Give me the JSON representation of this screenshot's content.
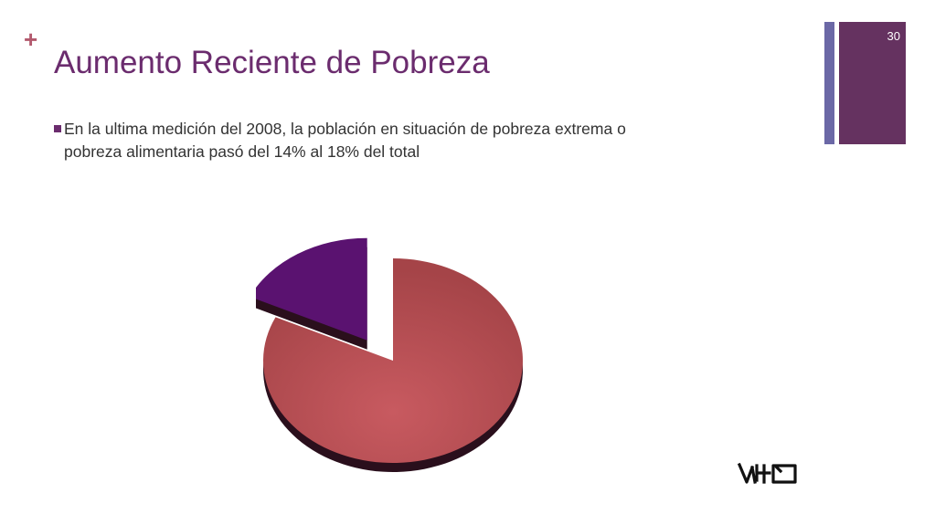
{
  "slide": {
    "plus_glyph": "+",
    "title": "Aumento Reciente de Pobreza",
    "page_number": "30",
    "bullet_line1": "En la ultima medición del 2008, la población en situación de pobreza extrema o",
    "bullet_line2": "pobreza alimentaria pasó del 14% al 18% del total"
  },
  "colors": {
    "accent_plus": "#b35a6e",
    "title": "#6b2c6e",
    "bar_thin": "#6b68a6",
    "bar_wide": "#653260",
    "bullet": "#6b2c6e",
    "pie_main": "#a54448",
    "pie_main_light": "#c85a60",
    "pie_slice": "#5a1270",
    "pie_shadow": "#2a0f1c"
  },
  "chart_data": {
    "type": "pie",
    "values": [
      82,
      18
    ],
    "exploded": [
      false,
      true
    ],
    "colors": [
      "#a54448",
      "#5a1270"
    ]
  },
  "logo": {
    "name": "vho-logo",
    "text": "VHO"
  }
}
